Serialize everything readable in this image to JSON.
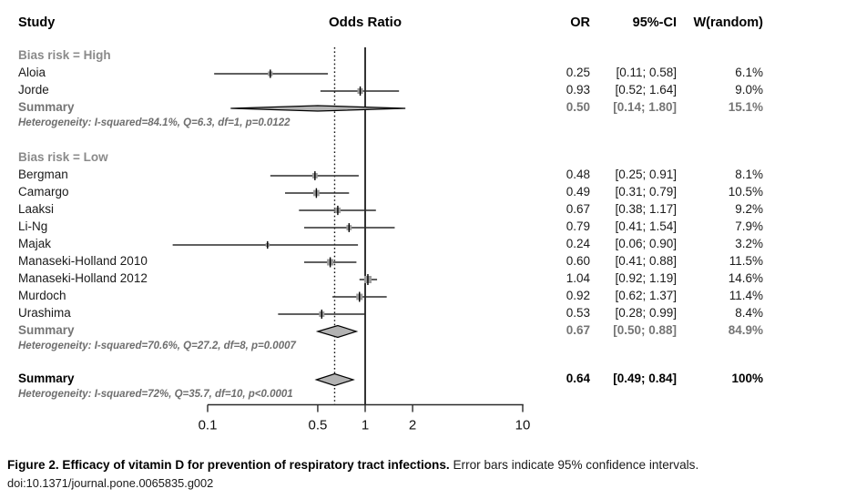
{
  "header": {
    "study": "Study",
    "odds_ratio": "Odds Ratio",
    "or": "OR",
    "ci": "95%-CI",
    "w": "W(random)"
  },
  "chart_data": {
    "type": "scatter",
    "subtype": "forest-plot",
    "title": "Odds Ratio",
    "x_scale": "log",
    "xlim": [
      0.1,
      10
    ],
    "x_ticks": [
      "0.1",
      "0.5",
      "1",
      "2",
      "10"
    ],
    "reference_line": 1,
    "dashed_line_at": 0.64,
    "groups": [
      {
        "label": "Bias risk = High",
        "studies": [
          {
            "label": "Aloia",
            "or": 0.25,
            "lo": 0.11,
            "hi": 0.58,
            "weight": 6.1,
            "or_text": "0.25",
            "ci_text": "[0.11; 0.58]",
            "w_text": "6.1%"
          },
          {
            "label": "Jorde",
            "or": 0.93,
            "lo": 0.52,
            "hi": 1.64,
            "weight": 9.0,
            "or_text": "0.93",
            "ci_text": "[0.52; 1.64]",
            "w_text": "9.0%"
          }
        ],
        "summary": {
          "label": "Summary",
          "or": 0.5,
          "lo": 0.14,
          "hi": 1.8,
          "or_text": "0.50",
          "ci_text": "[0.14; 1.80]",
          "w_text": "15.1%"
        },
        "heterogeneity": "Heterogeneity: I-squared=84.1%, Q=6.3, df=1, p=0.0122"
      },
      {
        "label": "Bias risk = Low",
        "studies": [
          {
            "label": "Bergman",
            "or": 0.48,
            "lo": 0.25,
            "hi": 0.91,
            "weight": 8.1,
            "or_text": "0.48",
            "ci_text": "[0.25; 0.91]",
            "w_text": "8.1%"
          },
          {
            "label": "Camargo",
            "or": 0.49,
            "lo": 0.31,
            "hi": 0.79,
            "weight": 10.5,
            "or_text": "0.49",
            "ci_text": "[0.31; 0.79]",
            "w_text": "10.5%"
          },
          {
            "label": "Laaksi",
            "or": 0.67,
            "lo": 0.38,
            "hi": 1.17,
            "weight": 9.2,
            "or_text": "0.67",
            "ci_text": "[0.38; 1.17]",
            "w_text": "9.2%"
          },
          {
            "label": "Li-Ng",
            "or": 0.79,
            "lo": 0.41,
            "hi": 1.54,
            "weight": 7.9,
            "or_text": "0.79",
            "ci_text": "[0.41; 1.54]",
            "w_text": "7.9%"
          },
          {
            "label": "Majak",
            "or": 0.24,
            "lo": 0.06,
            "hi": 0.9,
            "weight": 3.2,
            "or_text": "0.24",
            "ci_text": "[0.06; 0.90]",
            "w_text": "3.2%"
          },
          {
            "label": "Manaseki-Holland 2010",
            "or": 0.6,
            "lo": 0.41,
            "hi": 0.88,
            "weight": 11.5,
            "or_text": "0.60",
            "ci_text": "[0.41; 0.88]",
            "w_text": "11.5%"
          },
          {
            "label": "Manaseki-Holland 2012",
            "or": 1.04,
            "lo": 0.92,
            "hi": 1.19,
            "weight": 14.6,
            "or_text": "1.04",
            "ci_text": "[0.92; 1.19]",
            "w_text": "14.6%"
          },
          {
            "label": "Murdoch",
            "or": 0.92,
            "lo": 0.62,
            "hi": 1.37,
            "weight": 11.4,
            "or_text": "0.92",
            "ci_text": "[0.62; 1.37]",
            "w_text": "11.4%"
          },
          {
            "label": "Urashima",
            "or": 0.53,
            "lo": 0.28,
            "hi": 0.99,
            "weight": 8.4,
            "or_text": "0.53",
            "ci_text": "[0.28; 0.99]",
            "w_text": "8.4%"
          }
        ],
        "summary": {
          "label": "Summary",
          "or": 0.67,
          "lo": 0.5,
          "hi": 0.88,
          "or_text": "0.67",
          "ci_text": "[0.50; 0.88]",
          "w_text": "84.9%"
        },
        "heterogeneity": "Heterogeneity: I-squared=70.6%, Q=27.2, df=8, p=0.0007"
      }
    ],
    "overall": {
      "label": "Summary",
      "or": 0.64,
      "lo": 0.49,
      "hi": 0.84,
      "or_text": "0.64",
      "ci_text": "[0.49; 0.84]",
      "w_text": "100%",
      "heterogeneity": "Heterogeneity: I-squared=72%, Q=35.7, df=10, p<0.0001"
    }
  },
  "caption": {
    "bold": "Figure 2. Efficacy of vitamin D for prevention of respiratory tract infections.",
    "regular": "Error bars indicate 95% confidence intervals.",
    "doi": "doi:10.1371/journal.pone.0065835.g002"
  }
}
